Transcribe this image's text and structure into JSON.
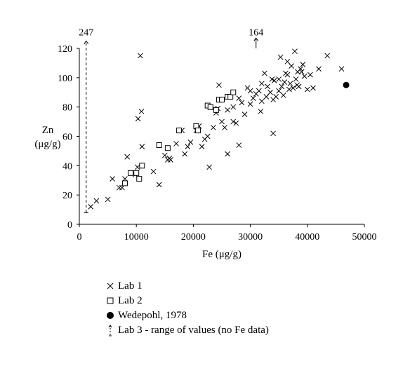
{
  "chart_data": {
    "type": "scatter",
    "xlabel": "Fe (μg/g)",
    "ylabel": [
      "Zn",
      "(μg/g)"
    ],
    "xlim": [
      0,
      50000
    ],
    "ylim": [
      0,
      120
    ],
    "xticks": [
      "0",
      "10000",
      "20000",
      "30000",
      "40000",
      "50000"
    ],
    "yticks": [
      "0",
      "20",
      "40",
      "60",
      "80",
      "100",
      "120"
    ],
    "grid": false,
    "legend_position": "bottom",
    "annotations": [
      {
        "text": "247",
        "x": 1200,
        "y": 128
      },
      {
        "text": "164",
        "x": 31000,
        "y": 128
      }
    ],
    "series": [
      {
        "name": "Lab 1",
        "marker": "x",
        "points": [
          [
            2000,
            12
          ],
          [
            3000,
            16
          ],
          [
            5000,
            17
          ],
          [
            5800,
            31
          ],
          [
            7000,
            25
          ],
          [
            7500,
            25
          ],
          [
            8000,
            31
          ],
          [
            8400,
            46
          ],
          [
            9000,
            35
          ],
          [
            9800,
            34
          ],
          [
            10200,
            39
          ],
          [
            10300,
            72
          ],
          [
            10700,
            115
          ],
          [
            10900,
            77
          ],
          [
            11000,
            53
          ],
          [
            13000,
            36
          ],
          [
            14000,
            27
          ],
          [
            15000,
            47
          ],
          [
            15500,
            44
          ],
          [
            15800,
            45
          ],
          [
            16000,
            44
          ],
          [
            17000,
            55
          ],
          [
            18000,
            64
          ],
          [
            18500,
            48
          ],
          [
            19000,
            53
          ],
          [
            19500,
            56
          ],
          [
            20500,
            64
          ],
          [
            21000,
            67
          ],
          [
            21500,
            53
          ],
          [
            22000,
            58
          ],
          [
            22500,
            60
          ],
          [
            22800,
            39
          ],
          [
            23000,
            80
          ],
          [
            23500,
            66
          ],
          [
            24000,
            76
          ],
          [
            24300,
            79
          ],
          [
            24500,
            95
          ],
          [
            25000,
            70
          ],
          [
            25500,
            66
          ],
          [
            26000,
            48
          ],
          [
            26000,
            78
          ],
          [
            26500,
            87
          ],
          [
            27000,
            70
          ],
          [
            27000,
            80
          ],
          [
            27500,
            69
          ],
          [
            28000,
            54
          ],
          [
            28000,
            86
          ],
          [
            28500,
            83
          ],
          [
            29000,
            75
          ],
          [
            29500,
            93
          ],
          [
            30000,
            82
          ],
          [
            30000,
            91
          ],
          [
            30500,
            86
          ],
          [
            31000,
            89
          ],
          [
            31500,
            91
          ],
          [
            31800,
            77
          ],
          [
            32000,
            84
          ],
          [
            32000,
            96
          ],
          [
            32500,
            103
          ],
          [
            32800,
            87
          ],
          [
            33000,
            94
          ],
          [
            33500,
            90
          ],
          [
            33800,
            99
          ],
          [
            34000,
            85
          ],
          [
            34000,
            62
          ],
          [
            34200,
            98
          ],
          [
            34500,
            87
          ],
          [
            35000,
            91
          ],
          [
            35000,
            99
          ],
          [
            35300,
            114
          ],
          [
            35500,
            94
          ],
          [
            35800,
            88
          ],
          [
            36000,
            97
          ],
          [
            36200,
            103
          ],
          [
            36500,
            102
          ],
          [
            36800,
            92
          ],
          [
            37000,
            96
          ],
          [
            37200,
            108
          ],
          [
            37500,
            93
          ],
          [
            37800,
            118
          ],
          [
            38000,
            99
          ],
          [
            38200,
            95
          ],
          [
            38500,
            94
          ],
          [
            38800,
            106
          ],
          [
            39000,
            104
          ],
          [
            39200,
            109
          ],
          [
            39500,
            101
          ],
          [
            40000,
            92
          ],
          [
            40500,
            102
          ],
          [
            41000,
            93
          ],
          [
            42000,
            106
          ],
          [
            43500,
            115
          ],
          [
            46000,
            106
          ],
          [
            36500,
            111
          ],
          [
            38300,
            104
          ]
        ]
      },
      {
        "name": "Lab 2",
        "marker": "square",
        "points": [
          [
            8000,
            28
          ],
          [
            9000,
            35
          ],
          [
            10000,
            35
          ],
          [
            10500,
            31
          ],
          [
            11000,
            40
          ],
          [
            14000,
            54
          ],
          [
            15500,
            52
          ],
          [
            17500,
            64
          ],
          [
            20500,
            67
          ],
          [
            20800,
            64
          ],
          [
            22500,
            81
          ],
          [
            23000,
            80
          ],
          [
            24000,
            78
          ],
          [
            24500,
            85
          ],
          [
            25000,
            85
          ],
          [
            26000,
            87
          ],
          [
            26500,
            87
          ],
          [
            27000,
            90
          ]
        ]
      },
      {
        "name": "Wedepohl, 1978",
        "marker": "filled-circle",
        "points": [
          [
            46800,
            95
          ]
        ]
      },
      {
        "name": "Lab 3 - range of values (no Fe data)",
        "marker": "range",
        "ranges": [
          {
            "x": 1200,
            "y_low": 8,
            "y_high": 125,
            "arrow": "up"
          },
          {
            "x": 31000,
            "y_low": 120,
            "y_high": 127,
            "arrow": "up"
          }
        ]
      }
    ]
  }
}
